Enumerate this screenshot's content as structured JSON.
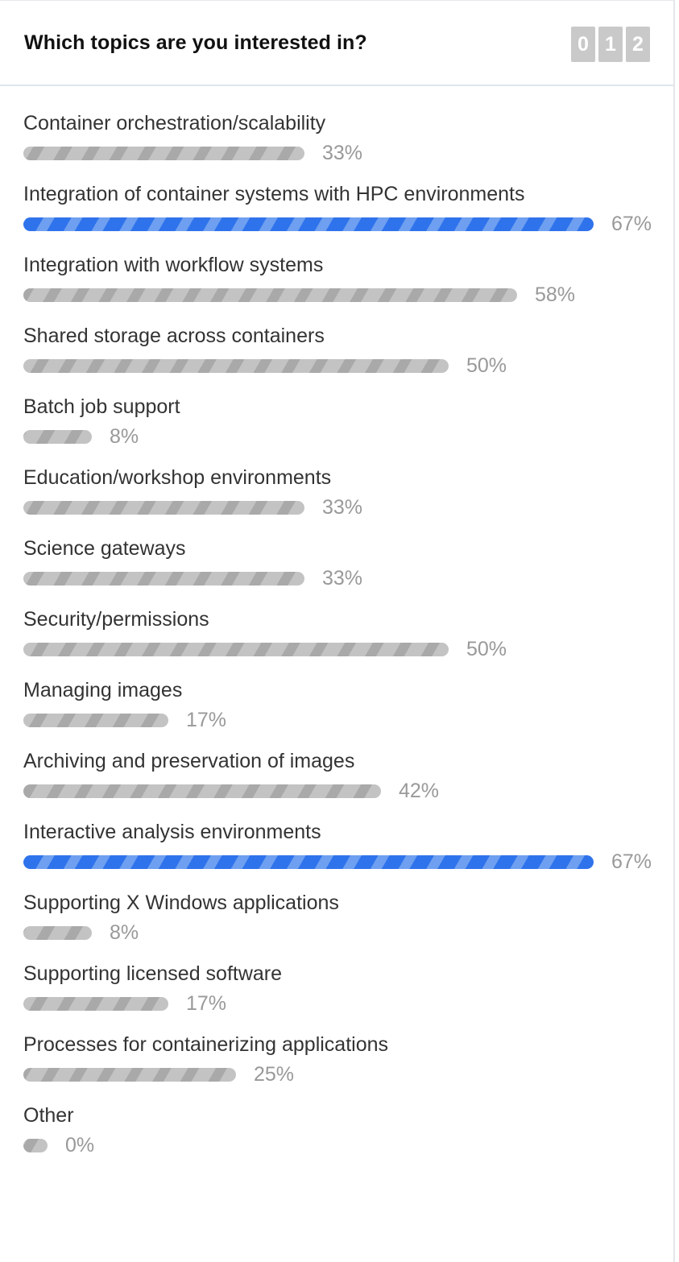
{
  "poll": {
    "question": "Which topics are you interested in?",
    "counter_digits": [
      "0",
      "1",
      "2"
    ],
    "highlight_color": "#3f7fea",
    "default_color": "#b8b8b8",
    "options": [
      {
        "label": "Container orchestration/scalability",
        "percent": 33,
        "percent_text": "33%",
        "highlight": false
      },
      {
        "label": "Integration of container systems with HPC environments",
        "percent": 67,
        "percent_text": "67%",
        "highlight": true
      },
      {
        "label": "Integration with workflow systems",
        "percent": 58,
        "percent_text": "58%",
        "highlight": false
      },
      {
        "label": "Shared storage across containers",
        "percent": 50,
        "percent_text": "50%",
        "highlight": false
      },
      {
        "label": "Batch job support",
        "percent": 8,
        "percent_text": "8%",
        "highlight": false
      },
      {
        "label": "Education/workshop environments",
        "percent": 33,
        "percent_text": "33%",
        "highlight": false
      },
      {
        "label": "Science gateways",
        "percent": 33,
        "percent_text": "33%",
        "highlight": false
      },
      {
        "label": "Security/permissions",
        "percent": 50,
        "percent_text": "50%",
        "highlight": false
      },
      {
        "label": "Managing images",
        "percent": 17,
        "percent_text": "17%",
        "highlight": false
      },
      {
        "label": "Archiving and preservation of images",
        "percent": 42,
        "percent_text": "42%",
        "highlight": false
      },
      {
        "label": "Interactive analysis environments",
        "percent": 67,
        "percent_text": "67%",
        "highlight": true
      },
      {
        "label": "Supporting X Windows applications",
        "percent": 8,
        "percent_text": "8%",
        "highlight": false
      },
      {
        "label": "Supporting licensed software",
        "percent": 17,
        "percent_text": "17%",
        "highlight": false
      },
      {
        "label": "Processes for containerizing applications",
        "percent": 25,
        "percent_text": "25%",
        "highlight": false
      },
      {
        "label": "Other",
        "percent": 0,
        "percent_text": "0%",
        "highlight": false
      }
    ]
  }
}
